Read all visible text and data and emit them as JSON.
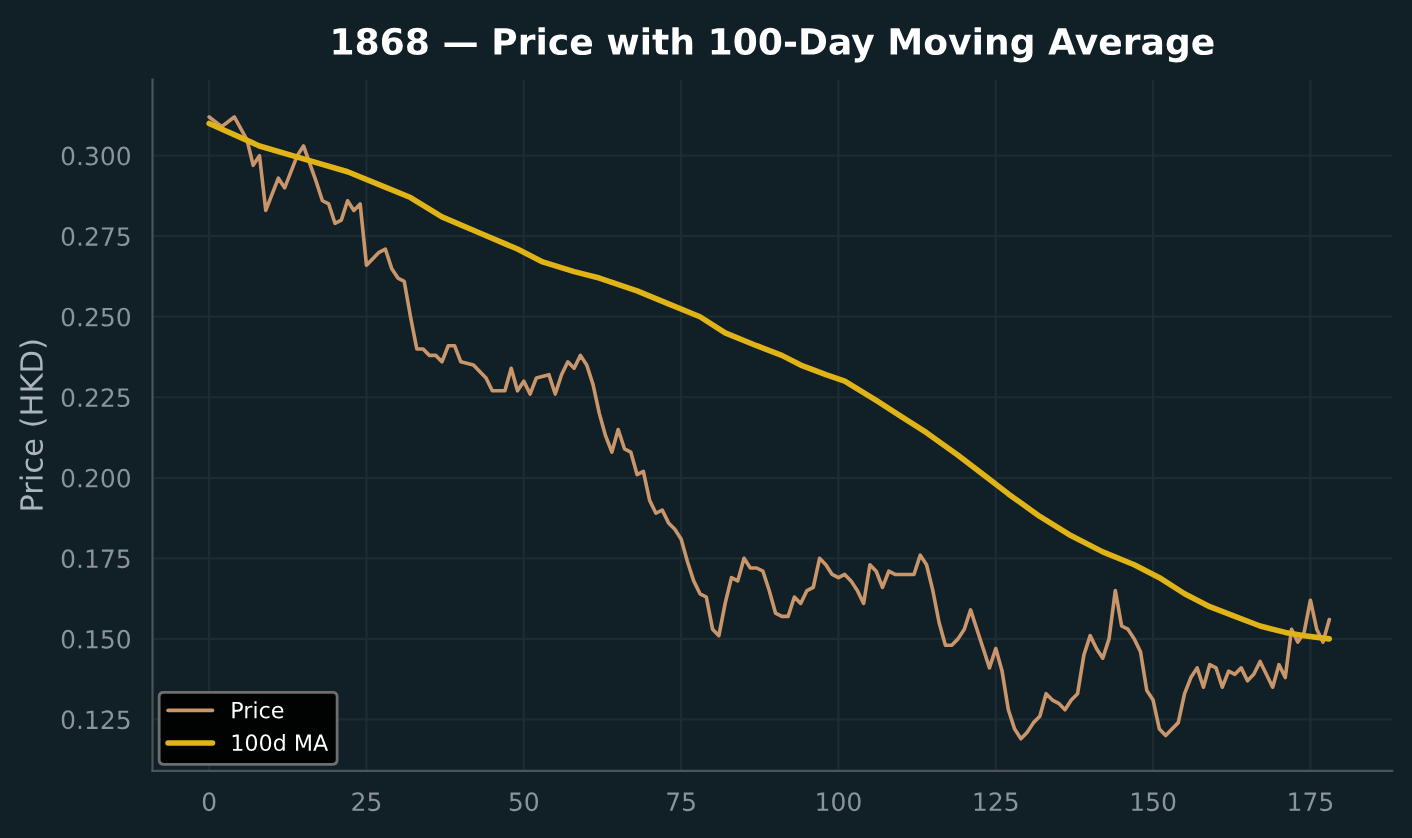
{
  "chart_data": {
    "type": "line",
    "title": "1868 — Price with 100-Day Moving Average",
    "ylabel": "Price (HKD)",
    "xlim": [
      -9,
      188
    ],
    "xticks": [
      0,
      25,
      50,
      75,
      100,
      125,
      150,
      175
    ],
    "ylim": [
      0.109,
      0.3236
    ],
    "yticks": [
      {
        "value": 0.125,
        "label": "0.125"
      },
      {
        "value": 0.15,
        "label": "0.150"
      },
      {
        "value": 0.175,
        "label": "0.175"
      },
      {
        "value": 0.2,
        "label": "0.200"
      },
      {
        "value": 0.225,
        "label": "0.225"
      },
      {
        "value": 0.25,
        "label": "0.250"
      },
      {
        "value": 0.275,
        "label": "0.275"
      },
      {
        "value": 0.3,
        "label": "0.300"
      }
    ],
    "grid": true,
    "legend": "bottom left",
    "marker": "none",
    "line_style": "solid",
    "series": [
      {
        "name": "Price",
        "color": "#c8966a",
        "x": [
          0,
          2,
          4,
          6,
          7,
          8,
          9,
          11,
          12,
          14,
          15,
          17,
          18,
          19,
          20,
          21,
          22,
          23,
          24,
          25,
          27,
          28,
          29,
          30,
          31,
          32,
          33,
          34,
          35,
          36,
          37,
          38,
          39,
          40,
          42,
          44,
          45,
          47,
          48,
          49,
          50,
          51,
          52,
          54,
          55,
          56,
          57,
          58,
          59,
          60,
          61,
          62,
          63,
          64,
          65,
          66,
          67,
          68,
          69,
          70,
          71,
          72,
          73,
          74,
          75,
          76,
          77,
          78,
          79,
          80,
          81,
          82,
          83,
          84,
          85,
          86,
          87,
          88,
          89,
          90,
          91,
          92,
          93,
          94,
          95,
          96,
          97,
          98,
          99,
          100,
          101,
          102,
          103,
          104,
          105,
          106,
          107,
          108,
          109,
          110,
          111,
          112,
          113,
          114,
          115,
          116,
          117,
          118,
          119,
          120,
          121,
          122,
          123,
          124,
          125,
          126,
          127,
          128,
          129,
          130,
          131,
          132,
          133,
          134,
          135,
          136,
          137,
          138,
          139,
          140,
          141,
          142,
          143,
          144,
          145,
          146,
          147,
          148,
          149,
          150,
          151,
          152,
          153,
          154,
          155,
          156,
          157,
          158,
          159,
          160,
          161,
          162,
          163,
          164,
          165,
          166,
          167,
          168,
          169,
          170,
          171,
          172,
          173,
          174,
          175,
          176,
          177,
          178
        ],
        "values": [
          0.312,
          0.309,
          0.312,
          0.305,
          0.297,
          0.3,
          0.283,
          0.293,
          0.29,
          0.3,
          0.303,
          0.292,
          0.286,
          0.285,
          0.279,
          0.28,
          0.286,
          0.283,
          0.285,
          0.266,
          0.27,
          0.271,
          0.265,
          0.262,
          0.261,
          0.25,
          0.24,
          0.24,
          0.238,
          0.238,
          0.236,
          0.241,
          0.241,
          0.236,
          0.235,
          0.231,
          0.227,
          0.227,
          0.234,
          0.227,
          0.23,
          0.226,
          0.231,
          0.232,
          0.226,
          0.232,
          0.236,
          0.234,
          0.238,
          0.235,
          0.229,
          0.22,
          0.213,
          0.208,
          0.215,
          0.209,
          0.208,
          0.201,
          0.202,
          0.193,
          0.189,
          0.19,
          0.186,
          0.184,
          0.181,
          0.174,
          0.168,
          0.164,
          0.163,
          0.153,
          0.151,
          0.161,
          0.169,
          0.168,
          0.175,
          0.172,
          0.172,
          0.171,
          0.165,
          0.158,
          0.157,
          0.157,
          0.163,
          0.161,
          0.165,
          0.166,
          0.175,
          0.173,
          0.17,
          0.169,
          0.17,
          0.168,
          0.165,
          0.161,
          0.173,
          0.171,
          0.166,
          0.171,
          0.17,
          0.17,
          0.17,
          0.17,
          0.176,
          0.173,
          0.165,
          0.155,
          0.148,
          0.148,
          0.15,
          0.153,
          0.159,
          0.153,
          0.147,
          0.141,
          0.147,
          0.14,
          0.128,
          0.122,
          0.119,
          0.121,
          0.124,
          0.126,
          0.133,
          0.131,
          0.13,
          0.128,
          0.131,
          0.133,
          0.145,
          0.151,
          0.147,
          0.144,
          0.15,
          0.165,
          0.154,
          0.153,
          0.15,
          0.146,
          0.134,
          0.131,
          0.122,
          0.12,
          0.122,
          0.124,
          0.133,
          0.138,
          0.141,
          0.135,
          0.142,
          0.141,
          0.135,
          0.14,
          0.139,
          0.141,
          0.137,
          0.139,
          0.143,
          0.139,
          0.135,
          0.142,
          0.138,
          0.153,
          0.149,
          0.152,
          0.162,
          0.153,
          0.149,
          0.156
        ]
      },
      {
        "name": "100d MA",
        "color": "#e0b416",
        "x": [
          0,
          8,
          15,
          22,
          27,
          32,
          37,
          43,
          49,
          53,
          58,
          62,
          68,
          73,
          78,
          82,
          87,
          91,
          94,
          98,
          101,
          106,
          110,
          114,
          119,
          123,
          127,
          132,
          137,
          142,
          147,
          151,
          155,
          159,
          163,
          167,
          171,
          174,
          178
        ],
        "values": [
          0.31,
          0.303,
          0.299,
          0.295,
          0.291,
          0.287,
          0.281,
          0.276,
          0.271,
          0.267,
          0.264,
          0.262,
          0.258,
          0.254,
          0.25,
          0.245,
          0.241,
          0.238,
          0.235,
          0.232,
          0.23,
          0.224,
          0.219,
          0.214,
          0.207,
          0.201,
          0.195,
          0.188,
          0.182,
          0.177,
          0.173,
          0.169,
          0.164,
          0.16,
          0.157,
          0.154,
          0.152,
          0.151,
          0.15
        ]
      }
    ]
  }
}
